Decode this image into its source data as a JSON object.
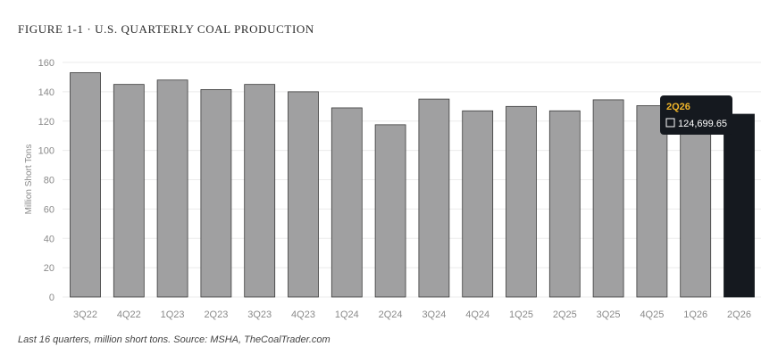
{
  "figure_title": "FIGURE 1-1 · U.S. QUARTERLY COAL PRODUCTION",
  "caption": "Last 16 quarters, million short tons. Source: MSHA, TheCoalTrader.com",
  "colors": {
    "bar": "#a0a0a1",
    "bar_highlight": "#15191f",
    "grid": "#ebebeb",
    "tooltip_bg": "#15191f",
    "tooltip_title": "#f0b429"
  },
  "chart_data": {
    "type": "bar",
    "title": "",
    "xlabel": "",
    "ylabel": "Million Short Tons",
    "ylim": [
      0,
      160
    ],
    "yticks": [
      0,
      20,
      40,
      60,
      80,
      100,
      120,
      140,
      160
    ],
    "grid": true,
    "categories": [
      "3Q22",
      "4Q22",
      "1Q23",
      "2Q23",
      "3Q23",
      "4Q23",
      "1Q24",
      "2Q24",
      "3Q24",
      "4Q24",
      "1Q25",
      "2Q25",
      "3Q25",
      "4Q25",
      "1Q26",
      "2Q26"
    ],
    "values": [
      153,
      145,
      148,
      141.5,
      145,
      140,
      129,
      117.5,
      135,
      127,
      130,
      127,
      134.5,
      130.5,
      128,
      124.7
    ],
    "highlight_index": 15,
    "tooltip": {
      "label": "2Q26",
      "value": "124,699.65"
    }
  }
}
